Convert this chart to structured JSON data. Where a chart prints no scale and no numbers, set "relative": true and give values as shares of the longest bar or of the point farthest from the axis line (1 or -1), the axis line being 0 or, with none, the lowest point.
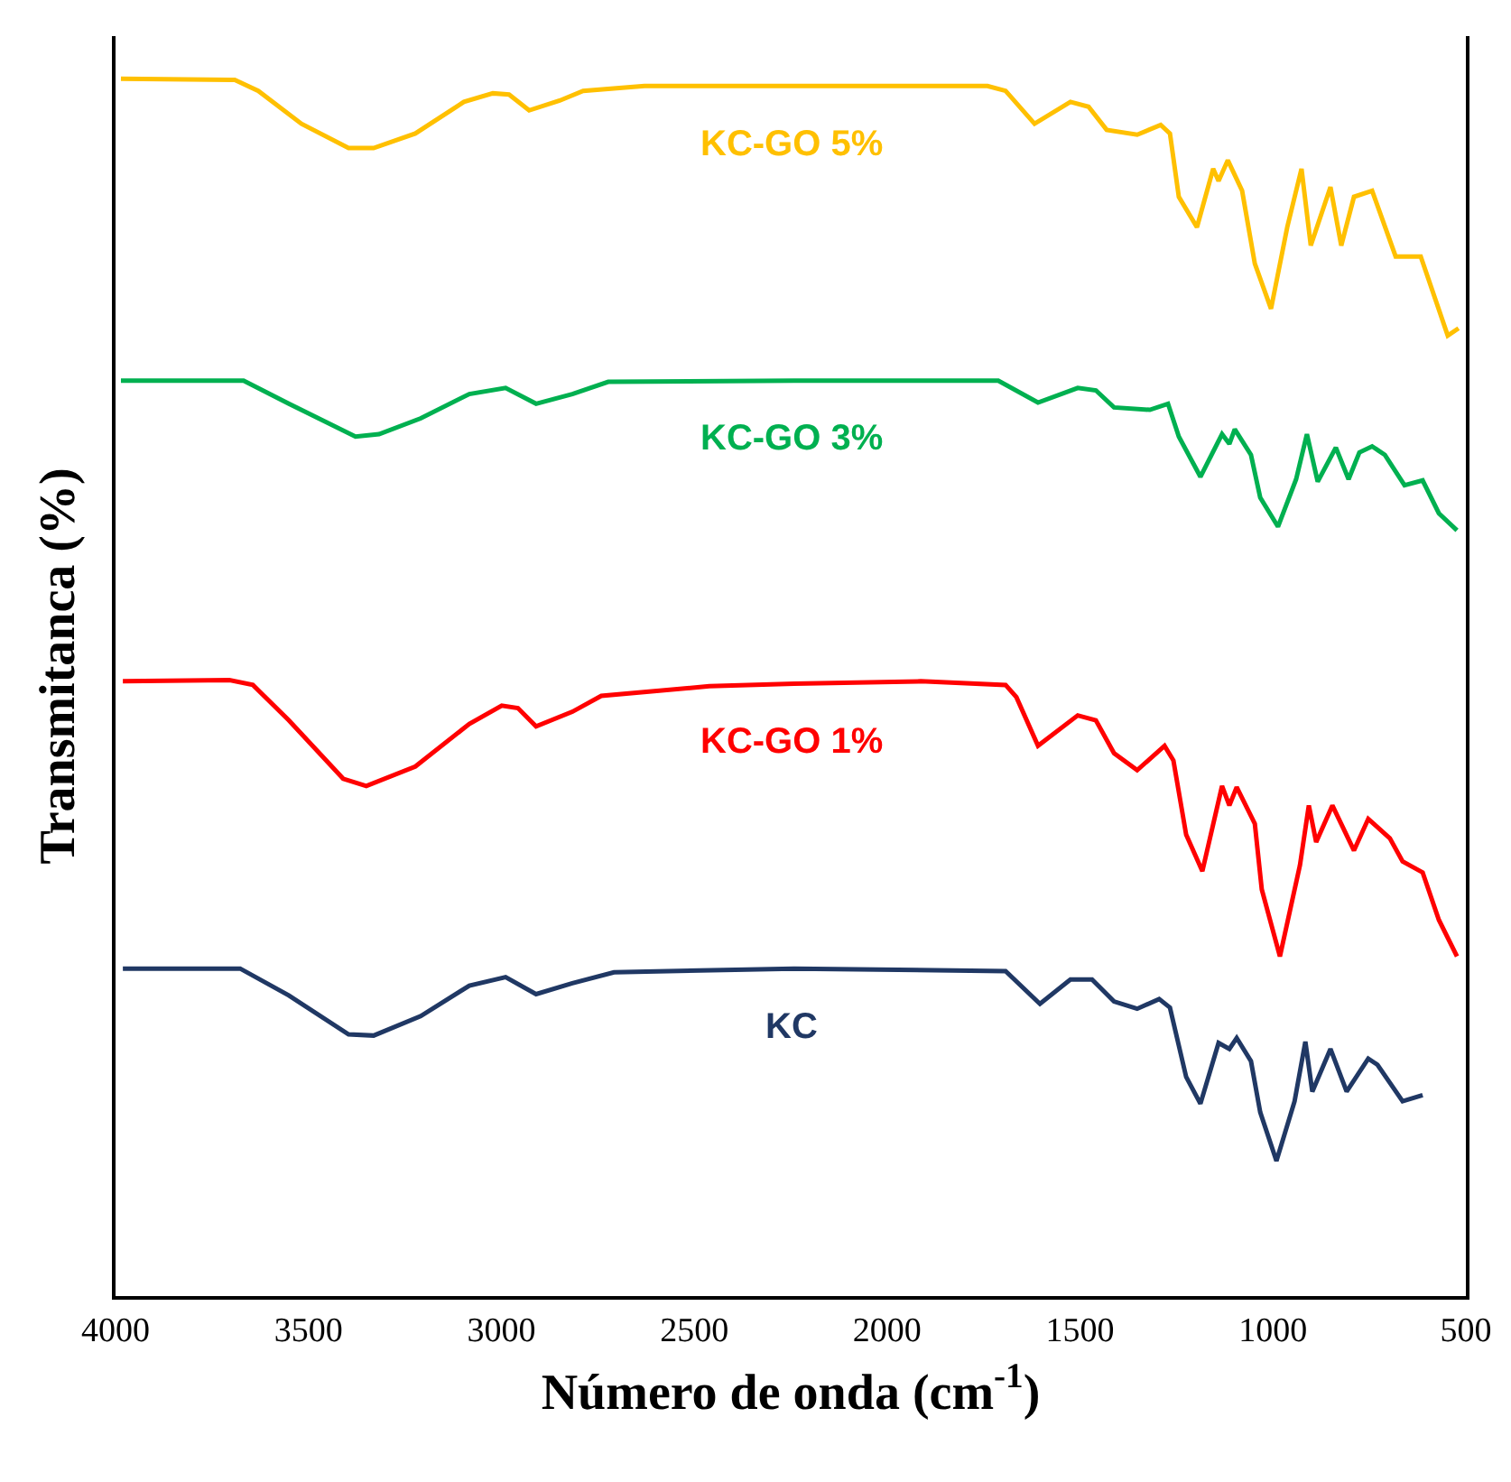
{
  "chart_data": {
    "type": "line",
    "relative": true,
    "xlabel": "Número de onda (cm$^{-1}$)",
    "ylabel": "Transmitanca (%)",
    "xlim": [
      4000,
      500
    ],
    "xticks": [
      4000,
      3500,
      3000,
      2500,
      2000,
      1500,
      1000,
      500
    ],
    "grid": false,
    "legend": false,
    "marker": "none",
    "line_style": "solid",
    "series": [
      {
        "name": "KC-GO 5%",
        "color": "#ffc000",
        "x": [
          3986,
          3691,
          3630,
          3518,
          3396,
          3331,
          3223,
          3097,
          3022,
          2980,
          2928,
          2849,
          2788,
          2629,
          2287,
          1927,
          1740,
          1693,
          1618,
          1525,
          1478,
          1431,
          1352,
          1291,
          1267,
          1244,
          1197,
          1155,
          1141,
          1117,
          1080,
          1047,
          1005,
          963,
          926,
          902,
          851,
          823,
          790,
          743,
          682,
          617,
          547,
          519
        ],
        "values": [
          1.0,
          0.999,
          0.99,
          0.963,
          0.943,
          0.943,
          0.955,
          0.981,
          0.988,
          0.987,
          0.974,
          0.982,
          0.99,
          0.994,
          0.994,
          0.994,
          0.994,
          0.99,
          0.963,
          0.981,
          0.977,
          0.958,
          0.954,
          0.962,
          0.955,
          0.903,
          0.878,
          0.926,
          0.916,
          0.933,
          0.908,
          0.848,
          0.811,
          0.878,
          0.926,
          0.863,
          0.911,
          0.863,
          0.903,
          0.908,
          0.854,
          0.854,
          0.789,
          0.795
        ]
      },
      {
        "name": "KC-GO 3%",
        "color": "#00b050",
        "x": [
          3986,
          3668,
          3551,
          3378,
          3317,
          3209,
          3083,
          2989,
          2910,
          2816,
          2723,
          2241,
          1712,
          1609,
          1506,
          1459,
          1412,
          1319,
          1272,
          1244,
          1188,
          1132,
          1113,
          1099,
          1057,
          1033,
          987,
          940,
          912,
          884,
          837,
          804,
          776,
          743,
          710,
          659,
          612,
          570,
          523
        ],
        "values": [
          0.752,
          0.752,
          0.733,
          0.706,
          0.708,
          0.721,
          0.741,
          0.746,
          0.733,
          0.741,
          0.751,
          0.752,
          0.752,
          0.734,
          0.746,
          0.744,
          0.73,
          0.728,
          0.733,
          0.706,
          0.673,
          0.708,
          0.7,
          0.712,
          0.691,
          0.656,
          0.632,
          0.671,
          0.708,
          0.669,
          0.697,
          0.671,
          0.693,
          0.698,
          0.691,
          0.666,
          0.67,
          0.643,
          0.629
        ]
      },
      {
        "name": "KC-GO 1%",
        "color": "#ff0000",
        "x": [
          3981,
          3705,
          3644,
          3551,
          3410,
          3350,
          3223,
          3083,
          2999,
          2957,
          2910,
          2816,
          2741,
          2461,
          2241,
          1913,
          1693,
          1665,
          1609,
          1506,
          1459,
          1412,
          1352,
          1281,
          1258,
          1225,
          1183,
          1132,
          1113,
          1094,
          1047,
          1029,
          982,
          930,
          907,
          888,
          846,
          790,
          753,
          697,
          664,
          612,
          570,
          523
        ],
        "values": [
          0.505,
          0.506,
          0.502,
          0.473,
          0.425,
          0.419,
          0.435,
          0.47,
          0.485,
          0.483,
          0.468,
          0.48,
          0.493,
          0.501,
          0.503,
          0.505,
          0.502,
          0.492,
          0.452,
          0.477,
          0.473,
          0.446,
          0.432,
          0.452,
          0.44,
          0.379,
          0.349,
          0.419,
          0.403,
          0.418,
          0.388,
          0.334,
          0.279,
          0.354,
          0.403,
          0.373,
          0.403,
          0.366,
          0.392,
          0.376,
          0.357,
          0.348,
          0.309,
          0.279
        ]
      },
      {
        "name": "KC",
        "color": "#203864",
        "x": [
          3981,
          3677,
          3551,
          3396,
          3331,
          3209,
          3083,
          2989,
          2910,
          2816,
          2708,
          2241,
          1693,
          1604,
          1525,
          1469,
          1412,
          1352,
          1295,
          1267,
          1225,
          1188,
          1141,
          1113,
          1094,
          1057,
          1033,
          991,
          944,
          916,
          898,
          851,
          809,
          753,
          729,
          664,
          612
        ],
        "values": [
          0.269,
          0.269,
          0.247,
          0.215,
          0.214,
          0.23,
          0.255,
          0.262,
          0.248,
          0.257,
          0.266,
          0.269,
          0.267,
          0.24,
          0.26,
          0.26,
          0.242,
          0.236,
          0.244,
          0.237,
          0.18,
          0.158,
          0.208,
          0.203,
          0.212,
          0.193,
          0.151,
          0.111,
          0.16,
          0.209,
          0.168,
          0.203,
          0.168,
          0.195,
          0.19,
          0.16,
          0.165
        ]
      }
    ]
  }
}
